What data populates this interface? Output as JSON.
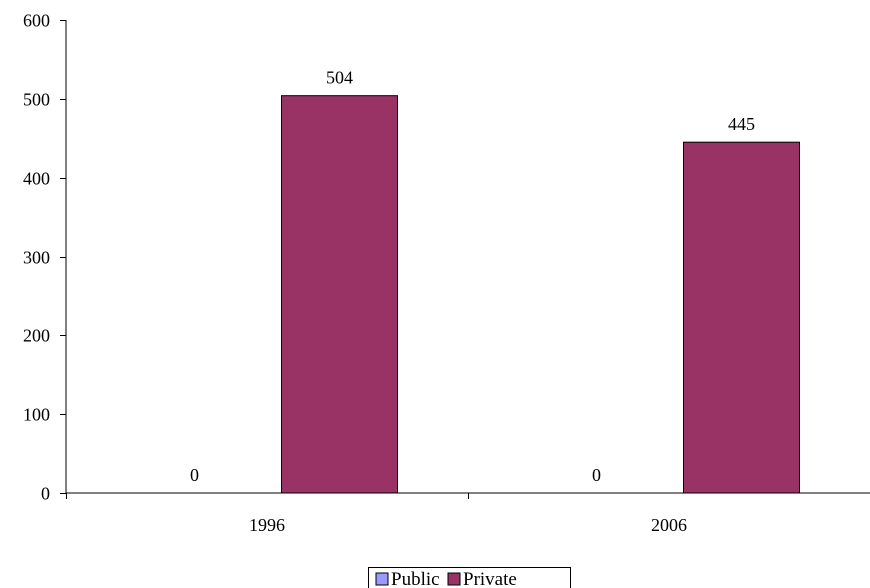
{
  "chart_data": {
    "type": "bar",
    "title": "",
    "xlabel": "",
    "ylabel": "",
    "categories": [
      "1996",
      "2006"
    ],
    "ylim": [
      0,
      600
    ],
    "yticks": [
      0,
      100,
      200,
      300,
      400,
      500,
      600
    ],
    "grid": false,
    "legend_position": "bottom",
    "series": [
      {
        "name": "Public",
        "color": "#9999ff",
        "values": [
          0,
          0
        ]
      },
      {
        "name": "Private",
        "color": "#993366",
        "values": [
          504,
          445
        ]
      }
    ]
  }
}
